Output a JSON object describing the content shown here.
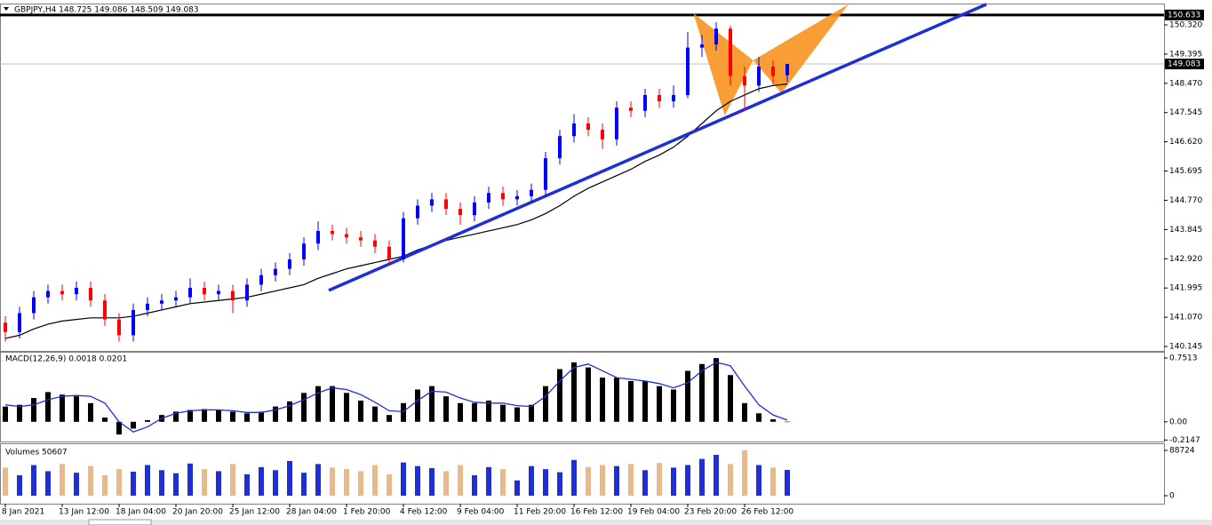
{
  "chart_data": {
    "type": "candlestick",
    "title": "GBPJPY,H4  148.725 149.086 148.509 149.083",
    "up_color": "#0000ff",
    "down_color": "#ff0000",
    "ma_color": "#000000",
    "trend_color": "#1f2fd6",
    "pattern_color": "#f7931e",
    "xticks": [
      {
        "value": 0,
        "label": "8 Jan 2021"
      },
      {
        "value": 4,
        "label": "13 Jan 12:00"
      },
      {
        "value": 8,
        "label": "18 Jan 04:00"
      },
      {
        "value": 12,
        "label": "20 Jan 20:00"
      },
      {
        "value": 16,
        "label": "25 Jan 12:00"
      },
      {
        "value": 20,
        "label": "28 Jan 04:00"
      },
      {
        "value": 24,
        "label": "1 Feb 20:00"
      },
      {
        "value": 28,
        "label": "4 Feb 12:00"
      },
      {
        "value": 32,
        "label": "9 Feb 04:00"
      },
      {
        "value": 36,
        "label": "11 Feb 20:00"
      },
      {
        "value": 40,
        "label": "16 Feb 12:00"
      },
      {
        "value": 44,
        "label": "19 Feb 04:00"
      },
      {
        "value": 48,
        "label": "23 Feb 20:00"
      },
      {
        "value": 52,
        "label": "26 Feb 12:00"
      }
    ],
    "ylim": [
      140.005,
      150.966
    ],
    "yticks": [
      {
        "value": 150.32,
        "label": "150.320"
      },
      {
        "value": 149.395,
        "label": "149.395"
      },
      {
        "value": 148.47,
        "label": "148.470"
      },
      {
        "value": 147.545,
        "label": "147.545"
      },
      {
        "value": 146.62,
        "label": "146.620"
      },
      {
        "value": 145.695,
        "label": "145.695"
      },
      {
        "value": 144.77,
        "label": "144.770"
      },
      {
        "value": 143.845,
        "label": "143.845"
      },
      {
        "value": 142.92,
        "label": "142.920"
      },
      {
        "value": 141.995,
        "label": "141.995"
      },
      {
        "value": 141.07,
        "label": "141.070"
      },
      {
        "value": 140.145,
        "label": "140.145"
      }
    ],
    "level_line": 150.633,
    "last_price": 149.083,
    "open": [
      140.9,
      140.6,
      141.2,
      141.7,
      141.9,
      141.8,
      142.0,
      141.6,
      141.0,
      140.5,
      141.3,
      141.5,
      141.6,
      141.7,
      142.0,
      141.8,
      141.9,
      141.6,
      142.1,
      142.4,
      142.6,
      142.9,
      143.4,
      143.8,
      143.7,
      143.6,
      143.5,
      143.3,
      142.9,
      144.2,
      144.6,
      144.8,
      144.5,
      144.3,
      144.7,
      145.0,
      144.8,
      144.9,
      145.1,
      146.1,
      146.8,
      147.2,
      147.0,
      146.7,
      147.7,
      147.6,
      148.1,
      147.9,
      148.1,
      149.6,
      149.7,
      150.2,
      148.7,
      148.4,
      149.0,
      148.725
    ],
    "high": [
      141.1,
      141.4,
      141.9,
      142.1,
      142.1,
      142.2,
      142.2,
      141.8,
      141.2,
      141.5,
      141.7,
      141.8,
      141.9,
      142.3,
      142.2,
      142.1,
      142.1,
      142.3,
      142.6,
      142.8,
      143.1,
      143.6,
      144.1,
      144.0,
      143.9,
      143.8,
      143.7,
      143.5,
      144.4,
      144.8,
      145.0,
      145.0,
      144.7,
      144.9,
      145.2,
      145.2,
      145.1,
      145.3,
      146.3,
      147.0,
      147.5,
      147.4,
      147.2,
      147.9,
      147.9,
      148.3,
      148.3,
      148.4,
      150.1,
      150.0,
      150.4,
      150.3,
      149.0,
      149.3,
      149.2,
      149.086
    ],
    "low": [
      140.3,
      140.4,
      141.0,
      141.5,
      141.6,
      141.6,
      141.4,
      140.8,
      140.3,
      140.3,
      141.1,
      141.3,
      141.4,
      141.5,
      141.6,
      141.6,
      141.2,
      141.4,
      141.9,
      142.2,
      142.4,
      142.7,
      143.2,
      143.5,
      143.4,
      143.3,
      143.1,
      142.7,
      142.8,
      144.0,
      144.4,
      144.3,
      144.0,
      144.1,
      144.5,
      144.6,
      144.6,
      144.7,
      144.9,
      145.9,
      146.6,
      146.8,
      146.4,
      146.5,
      147.4,
      147.4,
      147.7,
      147.7,
      148.0,
      149.3,
      149.5,
      148.4,
      147.6,
      148.2,
      148.4,
      148.509
    ],
    "close": [
      140.6,
      141.2,
      141.7,
      141.9,
      141.8,
      142.0,
      141.6,
      141.0,
      140.5,
      141.3,
      141.5,
      141.6,
      141.7,
      142.0,
      141.8,
      141.9,
      141.6,
      142.1,
      142.4,
      142.6,
      142.9,
      143.4,
      143.8,
      143.7,
      143.6,
      143.5,
      143.3,
      142.9,
      144.2,
      144.6,
      144.8,
      144.5,
      144.3,
      144.7,
      145.0,
      144.8,
      144.9,
      145.1,
      146.1,
      146.8,
      147.2,
      147.0,
      146.7,
      147.7,
      147.6,
      148.1,
      147.9,
      148.1,
      149.6,
      149.7,
      150.2,
      148.7,
      148.4,
      149.0,
      148.7,
      149.083
    ],
    "ma": [
      140.4,
      140.5,
      140.7,
      140.85,
      140.95,
      141.0,
      141.05,
      141.05,
      141.05,
      141.1,
      141.2,
      141.3,
      141.4,
      141.5,
      141.55,
      141.6,
      141.65,
      141.7,
      141.8,
      141.9,
      142.0,
      142.1,
      142.3,
      142.45,
      142.6,
      142.7,
      142.8,
      142.9,
      143.0,
      143.2,
      143.35,
      143.5,
      143.6,
      143.7,
      143.8,
      143.9,
      144.0,
      144.15,
      144.35,
      144.6,
      144.9,
      145.15,
      145.35,
      145.55,
      145.75,
      146.0,
      146.2,
      146.45,
      146.8,
      147.2,
      147.6,
      147.9,
      148.1,
      148.3,
      148.4,
      148.45
    ],
    "trendline": {
      "x": [
        22.75,
        69
      ],
      "y": [
        141.92,
        150.97
      ]
    },
    "pattern": {
      "x": [
        48.4,
        50.6,
        52.6,
        54.6,
        59.3
      ],
      "y": [
        150.69,
        147.45,
        149.2,
        148.16,
        150.97
      ]
    },
    "macd": {
      "title": "MACD(12,26,9) 0.0018 0.0201",
      "ylim": [
        -0.232,
        0.814
      ],
      "yticks": [
        0.7513,
        {
          "value": 0,
          "label": "0.00"
        },
        -0.2147
      ],
      "histogram": [
        0.18,
        0.2,
        0.28,
        0.35,
        0.32,
        0.3,
        0.22,
        0.05,
        -0.15,
        -0.08,
        0.02,
        0.08,
        0.12,
        0.14,
        0.15,
        0.14,
        0.12,
        0.1,
        0.12,
        0.18,
        0.24,
        0.34,
        0.42,
        0.42,
        0.34,
        0.25,
        0.18,
        0.08,
        0.22,
        0.38,
        0.42,
        0.3,
        0.22,
        0.22,
        0.25,
        0.2,
        0.17,
        0.2,
        0.42,
        0.62,
        0.7,
        0.64,
        0.52,
        0.52,
        0.48,
        0.48,
        0.42,
        0.38,
        0.6,
        0.68,
        0.75,
        0.55,
        0.22,
        0.1,
        0.03,
        0.0018
      ],
      "signal": [
        0.2,
        0.18,
        0.2,
        0.26,
        0.3,
        0.31,
        0.3,
        0.22,
        0.0,
        -0.12,
        -0.06,
        0.04,
        0.1,
        0.13,
        0.14,
        0.14,
        0.13,
        0.11,
        0.11,
        0.14,
        0.19,
        0.26,
        0.34,
        0.4,
        0.38,
        0.32,
        0.23,
        0.13,
        0.12,
        0.25,
        0.36,
        0.35,
        0.28,
        0.23,
        0.22,
        0.22,
        0.19,
        0.18,
        0.3,
        0.48,
        0.64,
        0.68,
        0.6,
        0.52,
        0.5,
        0.48,
        0.45,
        0.4,
        0.46,
        0.6,
        0.7,
        0.66,
        0.42,
        0.2,
        0.08,
        0.0201
      ]
    },
    "volume": {
      "title": "Volumes 50607",
      "ylim": [
        -15600,
        100900
      ],
      "yticks": [
        88724,
        0
      ],
      "values": [
        55000,
        40000,
        60000,
        48000,
        62000,
        45000,
        58000,
        40000,
        52000,
        47000,
        60000,
        50000,
        44000,
        63000,
        52000,
        48000,
        62000,
        42000,
        56000,
        50000,
        68000,
        45000,
        62000,
        55000,
        52000,
        48000,
        60000,
        42000,
        65000,
        58000,
        54000,
        48000,
        60000,
        40000,
        56000,
        52000,
        30000,
        58000,
        52000,
        46000,
        70000,
        56000,
        60000,
        58000,
        62000,
        50000,
        64000,
        55000,
        60000,
        72000,
        80000,
        62000,
        88724,
        60000,
        55000,
        50607
      ]
    }
  }
}
